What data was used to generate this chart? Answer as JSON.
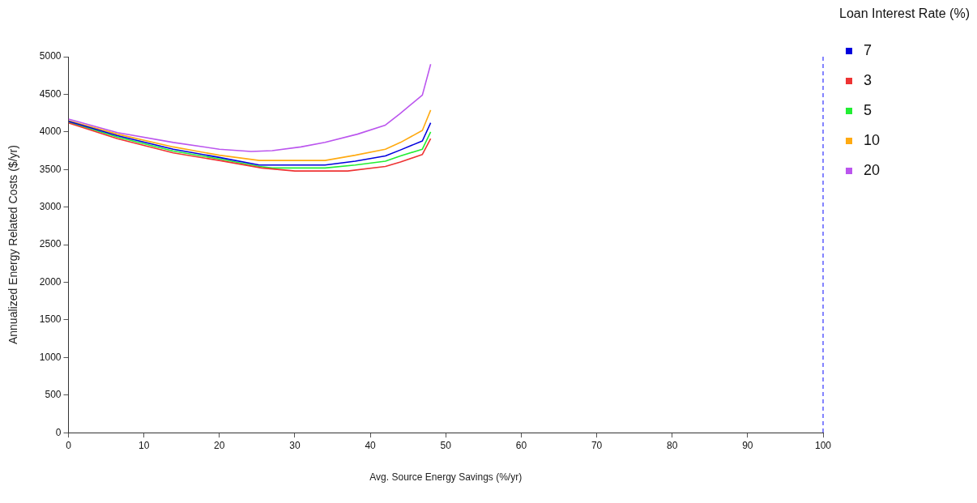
{
  "chart_data": {
    "type": "line",
    "xlabel": "Avg. Source Energy Savings (%/yr)",
    "ylabel": "Annualized Energy Related Costs ($/yr)",
    "legend_title": "Loan Interest Rate (%)",
    "legend": "top right",
    "grid": false,
    "marker": "none",
    "line_style": "solid",
    "xlim": [
      0,
      100
    ],
    "xticks": [
      0,
      10,
      20,
      30,
      40,
      50,
      60,
      70,
      80,
      90,
      100
    ],
    "ylim": [
      0,
      5000
    ],
    "yticks": [
      0,
      500,
      1000,
      1500,
      2000,
      2500,
      3000,
      3500,
      4000,
      4500,
      5000
    ],
    "series": [
      {
        "name": "7",
        "color": "#0000dd",
        "x": [
          0,
          6.5,
          13.9,
          20,
          25.3,
          34,
          38,
          42,
          44,
          46.9,
          48
        ],
        "values": [
          4140,
          3950,
          3770,
          3660,
          3560,
          3560,
          3610,
          3680,
          3760,
          3880,
          4120
        ]
      },
      {
        "name": "3",
        "color": "#ee3333",
        "x": [
          0,
          6.5,
          13.9,
          20,
          25.6,
          30,
          37,
          42,
          44,
          46.9,
          48
        ],
        "values": [
          4120,
          3910,
          3720,
          3620,
          3520,
          3480,
          3480,
          3540,
          3600,
          3700,
          3910
        ]
      },
      {
        "name": "5",
        "color": "#22ee33",
        "x": [
          0,
          6.5,
          13.9,
          20,
          25.3,
          27,
          34,
          38,
          42,
          44,
          46.9,
          48
        ],
        "values": [
          4130,
          3930,
          3745,
          3640,
          3540,
          3520,
          3520,
          3560,
          3610,
          3680,
          3770,
          4000
        ]
      },
      {
        "name": "10",
        "color": "#ffaa11",
        "x": [
          0,
          6.5,
          13.9,
          20,
          25.3,
          34,
          38,
          42,
          44,
          46.9,
          48
        ],
        "values": [
          4150,
          3970,
          3800,
          3690,
          3620,
          3620,
          3690,
          3770,
          3860,
          4020,
          4290
        ]
      },
      {
        "name": "20",
        "color": "#bb55ee",
        "x": [
          0,
          6.5,
          13.9,
          20,
          24.2,
          27,
          30.8,
          34,
          38.3,
          42,
          43.9,
          46.9,
          48
        ],
        "values": [
          4170,
          3990,
          3860,
          3770,
          3740,
          3750,
          3800,
          3860,
          3970,
          4090,
          4240,
          4490,
          4900
        ]
      }
    ],
    "ref_lines": [
      {
        "axis": "x",
        "value": 100,
        "color": "#3333ff",
        "line_style": "dashed"
      }
    ]
  }
}
